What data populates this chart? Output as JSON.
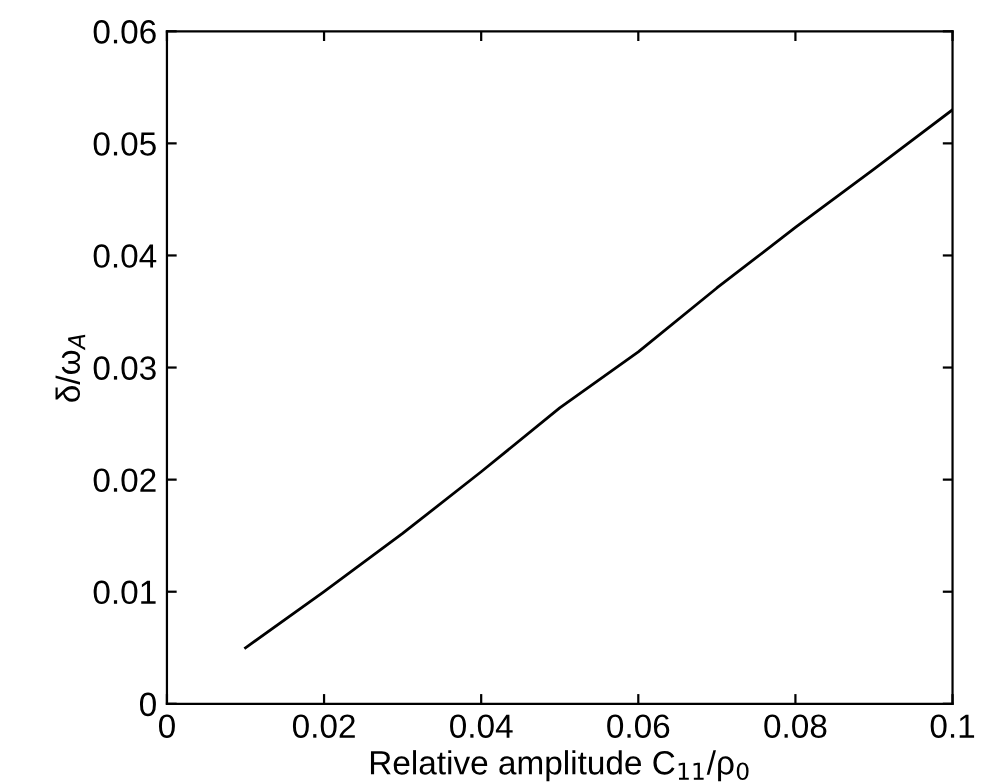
{
  "chart_data": {
    "type": "line",
    "xlabel": "Relative amplitude C$_{11}$/ρ$_{0}$",
    "ylabel": "δ/ω$_{A}$",
    "x": [
      0.01,
      0.02,
      0.03,
      0.04,
      0.05,
      0.06,
      0.07,
      0.08,
      0.09,
      0.1
    ],
    "series": [
      {
        "color": "#000000",
        "values": [
          0.005,
          0.01,
          0.0152,
          0.0207,
          0.0264,
          0.0314,
          0.0371,
          0.0425,
          0.0477,
          0.053
        ]
      }
    ],
    "xlim": [
      0,
      0.1
    ],
    "ylim": [
      0,
      0.06
    ],
    "xticks": [
      0,
      0.02,
      0.04,
      0.06,
      0.08,
      0.1
    ],
    "yticks": [
      0,
      0.01,
      0.02,
      0.03,
      0.04,
      0.05,
      0.06
    ],
    "grid": false,
    "marker": "none",
    "line_style": "solid"
  }
}
